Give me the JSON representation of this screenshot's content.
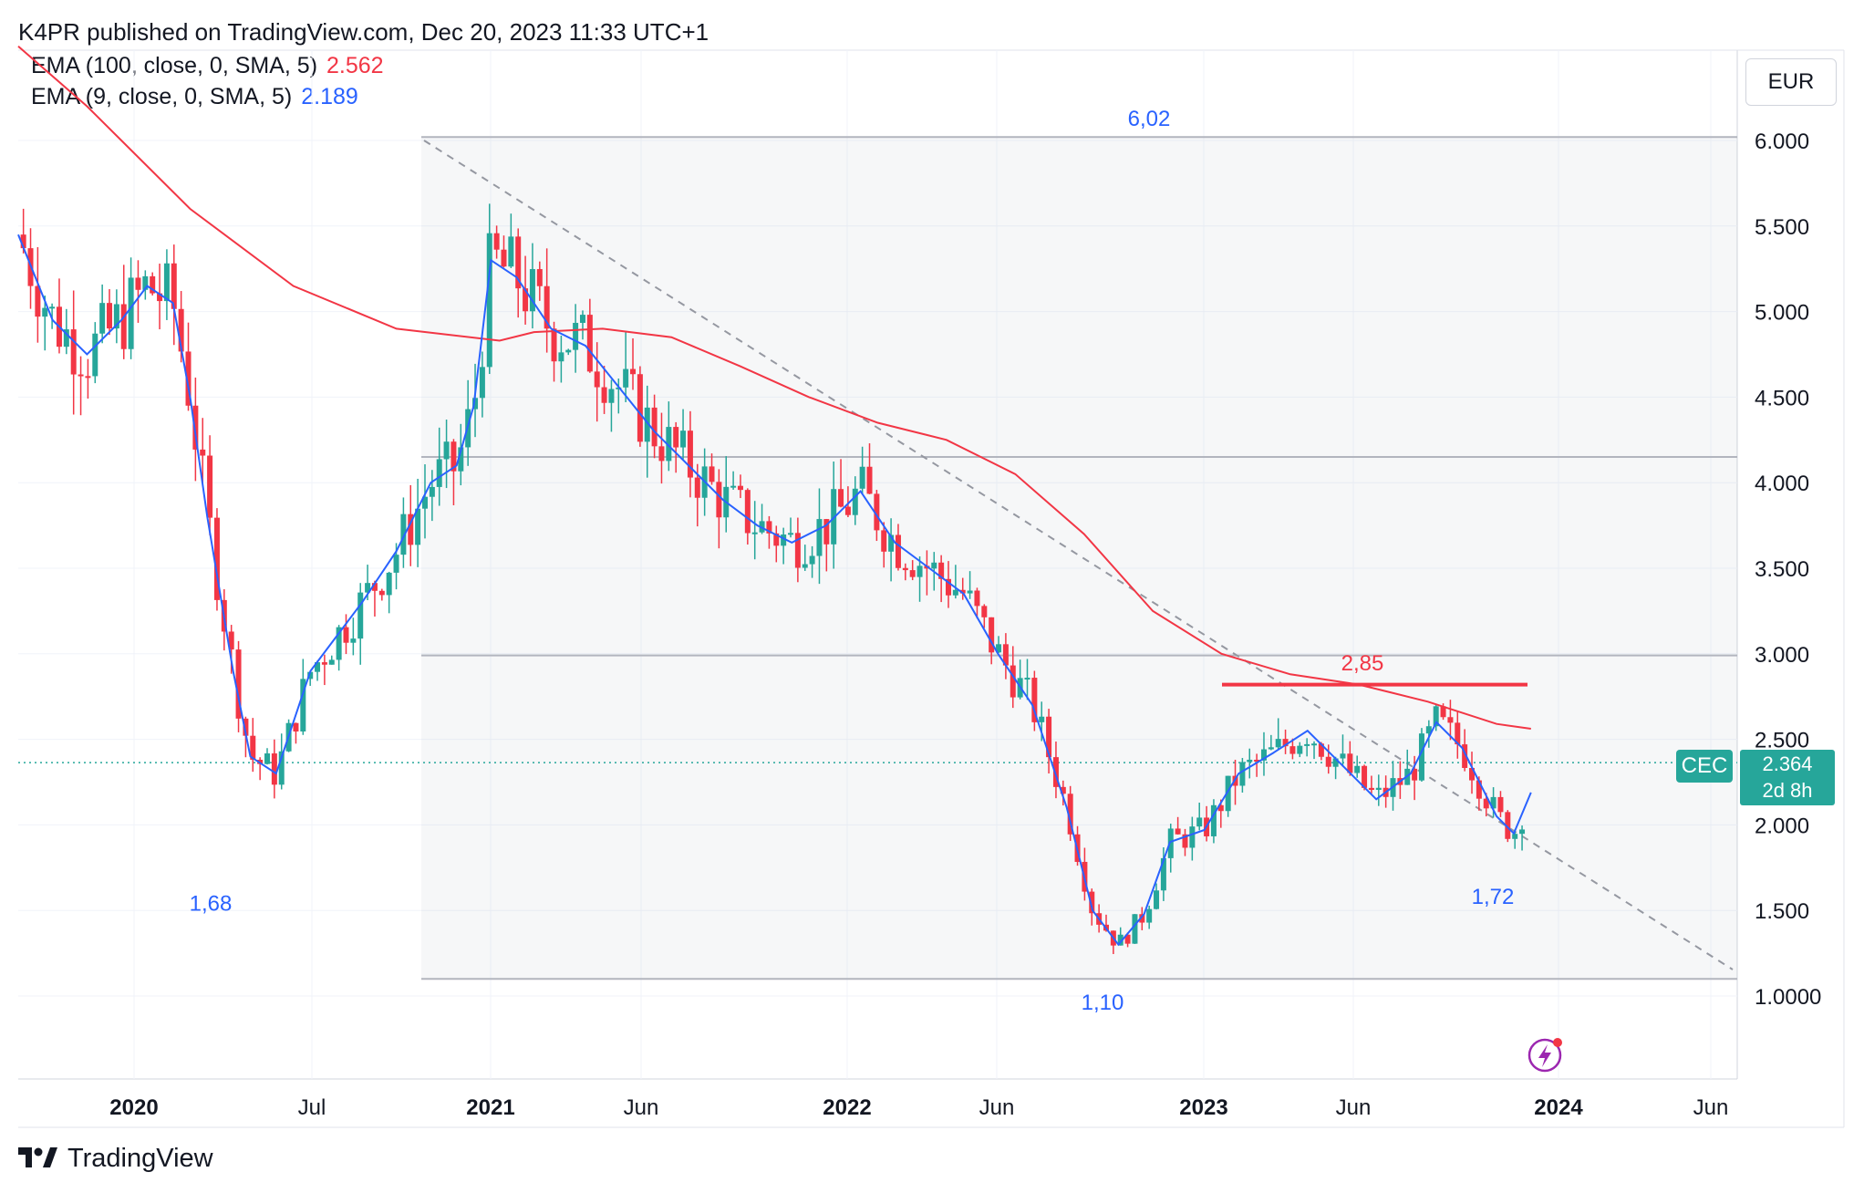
{
  "header": {
    "published": "K4PR published on TradingView.com, Dec 20, 2023 11:33 UTC+1"
  },
  "legend": [
    {
      "name": "EMA (100, close, 0, SMA, 5)",
      "value": "2.562",
      "color": "#f23645"
    },
    {
      "name": "EMA (9, close, 0, SMA, 5)",
      "value": "2.189",
      "color": "#2962ff"
    }
  ],
  "currency": "EUR",
  "ticker": "CEC",
  "last_price": {
    "value": "2.364",
    "countdown": "2d 8h"
  },
  "brand": "TradingView",
  "colors": {
    "up": "#26a69a",
    "down": "#f23645",
    "ema100": "#f23645",
    "ema9": "#2962ff",
    "accent": "#26a69a"
  },
  "chart_data": {
    "type": "candlestick",
    "y_axis_ticks": [
      "6.000",
      "5.500",
      "5.000",
      "4.500",
      "4.000",
      "3.500",
      "3.000",
      "2.500",
      "2.000",
      "1.500",
      "1.0000"
    ],
    "ylim": [
      0.55,
      6.55
    ],
    "x_axis_labels": [
      {
        "label": "2020",
        "bold": true
      },
      {
        "label": "Jul",
        "bold": false
      },
      {
        "label": "2021",
        "bold": true
      },
      {
        "label": "Jun",
        "bold": false
      },
      {
        "label": "2022",
        "bold": true
      },
      {
        "label": "Jun",
        "bold": false
      },
      {
        "label": "2023",
        "bold": true
      },
      {
        "label": "Jun",
        "bold": false
      },
      {
        "label": "2024",
        "bold": true
      },
      {
        "label": "Jun",
        "bold": false
      }
    ],
    "annotations": [
      {
        "text": "6,02",
        "price": 6.02,
        "color": "#2962ff"
      },
      {
        "text": "1,68",
        "price": 1.68,
        "color": "#2962ff"
      },
      {
        "text": "1,10",
        "price": 1.1,
        "color": "#2962ff"
      },
      {
        "text": "2,85",
        "price": 2.85,
        "color": "#f23645"
      },
      {
        "text": "1,72",
        "price": 1.72,
        "color": "#2962ff"
      }
    ],
    "horizontal_levels": [
      6.02,
      4.15,
      2.99,
      1.1
    ],
    "resistance_line": 2.82,
    "last_price": 2.364,
    "ema100": [
      [
        0.0,
        6.55
      ],
      [
        0.04,
        6.2
      ],
      [
        0.1,
        5.6
      ],
      [
        0.16,
        5.15
      ],
      [
        0.22,
        4.9
      ],
      [
        0.28,
        4.83
      ],
      [
        0.3,
        4.88
      ],
      [
        0.34,
        4.9
      ],
      [
        0.38,
        4.85
      ],
      [
        0.42,
        4.68
      ],
      [
        0.46,
        4.5
      ],
      [
        0.5,
        4.35
      ],
      [
        0.54,
        4.25
      ],
      [
        0.58,
        4.05
      ],
      [
        0.62,
        3.7
      ],
      [
        0.66,
        3.25
      ],
      [
        0.7,
        3.0
      ],
      [
        0.74,
        2.88
      ],
      [
        0.78,
        2.82
      ],
      [
        0.82,
        2.72
      ],
      [
        0.86,
        2.59
      ],
      [
        0.88,
        2.562
      ]
    ],
    "ema9": [
      [
        0.0,
        5.45
      ],
      [
        0.02,
        4.95
      ],
      [
        0.04,
        4.75
      ],
      [
        0.06,
        4.95
      ],
      [
        0.075,
        5.15
      ],
      [
        0.09,
        5.05
      ],
      [
        0.1,
        4.5
      ],
      [
        0.11,
        3.8
      ],
      [
        0.125,
        2.9
      ],
      [
        0.135,
        2.4
      ],
      [
        0.15,
        2.3
      ],
      [
        0.17,
        2.9
      ],
      [
        0.2,
        3.3
      ],
      [
        0.22,
        3.6
      ],
      [
        0.24,
        4.0
      ],
      [
        0.255,
        4.1
      ],
      [
        0.265,
        4.45
      ],
      [
        0.275,
        5.3
      ],
      [
        0.29,
        5.2
      ],
      [
        0.31,
        4.9
      ],
      [
        0.33,
        4.8
      ],
      [
        0.35,
        4.55
      ],
      [
        0.37,
        4.3
      ],
      [
        0.39,
        4.1
      ],
      [
        0.41,
        3.9
      ],
      [
        0.43,
        3.75
      ],
      [
        0.45,
        3.65
      ],
      [
        0.47,
        3.75
      ],
      [
        0.49,
        3.95
      ],
      [
        0.51,
        3.65
      ],
      [
        0.53,
        3.5
      ],
      [
        0.55,
        3.35
      ],
      [
        0.57,
        3.0
      ],
      [
        0.59,
        2.7
      ],
      [
        0.61,
        2.1
      ],
      [
        0.625,
        1.5
      ],
      [
        0.64,
        1.3
      ],
      [
        0.655,
        1.48
      ],
      [
        0.67,
        1.9
      ],
      [
        0.69,
        1.97
      ],
      [
        0.71,
        2.3
      ],
      [
        0.73,
        2.42
      ],
      [
        0.75,
        2.55
      ],
      [
        0.77,
        2.35
      ],
      [
        0.79,
        2.15
      ],
      [
        0.81,
        2.3
      ],
      [
        0.825,
        2.6
      ],
      [
        0.84,
        2.45
      ],
      [
        0.86,
        2.05
      ],
      [
        0.87,
        1.95
      ],
      [
        0.88,
        2.189
      ]
    ]
  }
}
